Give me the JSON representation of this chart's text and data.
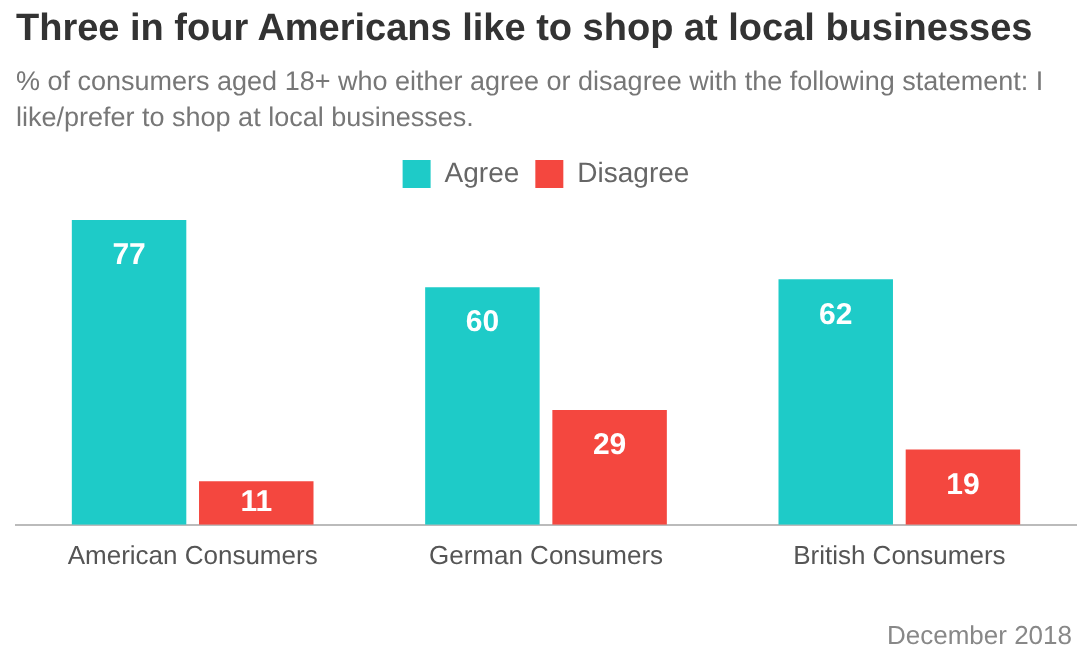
{
  "chart_data": {
    "type": "bar",
    "title": "Three in four Americans like to shop at local businesses",
    "subtitle": "% of consumers aged 18+ who either agree or disagree with the following statement: I like/prefer to shop at local businesses.",
    "categories": [
      "American Consumers",
      "German Consumers",
      "British Consumers"
    ],
    "series": [
      {
        "name": "Agree",
        "color": "#1ecbc8",
        "values": [
          77,
          60,
          62
        ]
      },
      {
        "name": "Disagree",
        "color": "#f4473f",
        "values": [
          11,
          29,
          19
        ]
      }
    ],
    "data_labels": true,
    "legend": "top",
    "grid": false,
    "annotations": [
      "December 2018"
    ]
  }
}
